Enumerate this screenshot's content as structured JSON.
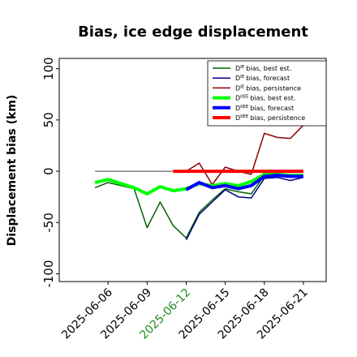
{
  "chart_data": {
    "type": "line",
    "title": "Bias, ice edge displacement",
    "ylabel": "Displacement bias (km)",
    "x": [
      "2025-06-05",
      "2025-06-06",
      "2025-06-07",
      "2025-06-08",
      "2025-06-09",
      "2025-06-10",
      "2025-06-11",
      "2025-06-12",
      "2025-06-13",
      "2025-06-14",
      "2025-06-15",
      "2025-06-16",
      "2025-06-17",
      "2025-06-18",
      "2025-06-19",
      "2025-06-20",
      "2025-06-21"
    ],
    "xlim": [
      "2025-06-02T06:00",
      "2025-06-22T18:00"
    ],
    "xticks": [
      "2025-06-06",
      "2025-06-09",
      "2025-06-12",
      "2025-06-15",
      "2025-06-18",
      "2025-06-21"
    ],
    "xtick_label_colors": [
      "#000000",
      "#000000",
      "#228b22",
      "#000000",
      "#000000",
      "#000000"
    ],
    "ylim": [
      -107.5,
      110
    ],
    "yticks": [
      -100,
      -50,
      0,
      50,
      100
    ],
    "zero_line": {
      "color": "#808080",
      "x": [
        "2025-06-05",
        "2025-06-21"
      ]
    },
    "legend": "upper right",
    "series": [
      {
        "symbol": "D",
        "superscript": "IE",
        "name": "bias, best est.",
        "color": "#006400",
        "width": 1.5,
        "values": [
          -16,
          -11,
          -14,
          -17,
          -55,
          -30,
          -53,
          -65,
          -40,
          -28,
          -17,
          -20,
          -22,
          -4,
          -3,
          -5,
          -4
        ]
      },
      {
        "symbol": "D",
        "superscript": "IE",
        "name": "bias, forecast",
        "color": "#00008b",
        "width": 1.5,
        "values": [
          null,
          null,
          null,
          null,
          null,
          null,
          null,
          -67,
          -42,
          -30,
          -18,
          -25,
          -26,
          -7,
          -6,
          -9,
          -6
        ]
      },
      {
        "symbol": "D",
        "superscript": "IE",
        "name": "bias, persistence",
        "color": "#8b0000",
        "width": 1.5,
        "values": [
          null,
          null,
          null,
          null,
          null,
          null,
          0,
          0,
          8,
          -13,
          4,
          0,
          -3,
          37,
          33,
          32,
          45
        ]
      },
      {
        "symbol": "D",
        "superscript": "IIEE",
        "name": "bias, best est.",
        "color": "#00ff00",
        "width": 4,
        "values": [
          -11,
          -8,
          -12,
          -16,
          -22,
          -15,
          -19,
          -17,
          -12,
          -14,
          -12,
          -14,
          -10,
          -3,
          -3,
          -4,
          -4
        ]
      },
      {
        "symbol": "D",
        "superscript": "IIEE",
        "name": "bias, forecast",
        "color": "#0000ff",
        "width": 4,
        "values": [
          null,
          null,
          null,
          null,
          null,
          null,
          null,
          -18,
          -11,
          -16,
          -14,
          -17,
          -14,
          -5,
          -4,
          -5,
          -5
        ]
      },
      {
        "symbol": "D",
        "superscript": "IIEE",
        "name": "bias, persistence",
        "color": "#ff0000",
        "width": 4,
        "values": [
          null,
          null,
          null,
          null,
          null,
          null,
          0,
          0,
          0,
          0,
          0,
          0,
          0,
          0,
          0,
          0,
          0
        ]
      }
    ]
  }
}
